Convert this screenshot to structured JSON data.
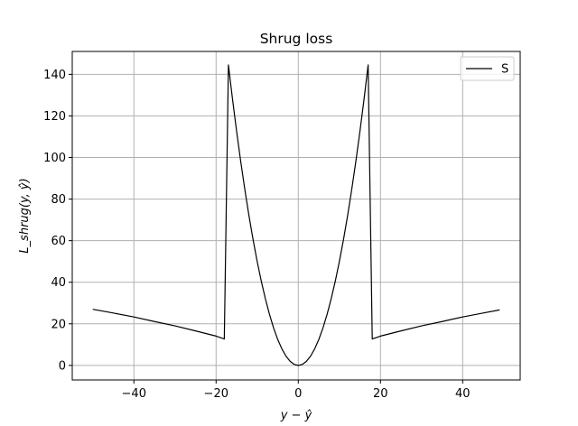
{
  "chart_data": {
    "type": "line",
    "title": "Shrug loss",
    "xlabel": "y − ŷ",
    "ylabel": "L_shrug(y, ŷ)",
    "xlim": [
      -55,
      54
    ],
    "ylim": [
      -7,
      151
    ],
    "xticks": [
      -40,
      -20,
      0,
      20,
      40
    ],
    "xtick_labels": [
      "−40",
      "−20",
      "0",
      "20",
      "40"
    ],
    "yticks": [
      0,
      20,
      40,
      60,
      80,
      100,
      120,
      140
    ],
    "ytick_labels": [
      "0",
      "20",
      "40",
      "60",
      "80",
      "100",
      "120",
      "140"
    ],
    "grid": true,
    "legend_position": "top-right",
    "series": [
      {
        "name": "S",
        "color": "#000000",
        "points": [
          [
            -50,
            27
          ],
          [
            -45,
            25.2
          ],
          [
            -40,
            23.3
          ],
          [
            -35,
            21.1
          ],
          [
            -30,
            19
          ],
          [
            -25,
            16.6
          ],
          [
            -20,
            14.1
          ],
          [
            -18,
            12.7
          ],
          [
            -17,
            144.5
          ],
          [
            -16,
            128
          ],
          [
            -15,
            112.5
          ],
          [
            -14,
            98
          ],
          [
            -13,
            84.5
          ],
          [
            -12,
            72
          ],
          [
            -11,
            60.5
          ],
          [
            -10,
            50
          ],
          [
            -9,
            40.5
          ],
          [
            -8,
            32
          ],
          [
            -7,
            24.5
          ],
          [
            -6,
            18
          ],
          [
            -5,
            12.5
          ],
          [
            -4,
            8
          ],
          [
            -3,
            4.5
          ],
          [
            -2,
            2
          ],
          [
            -1,
            0.5
          ],
          [
            0,
            0
          ],
          [
            1,
            0.5
          ],
          [
            2,
            2
          ],
          [
            3,
            4.5
          ],
          [
            4,
            8
          ],
          [
            5,
            12.5
          ],
          [
            6,
            18
          ],
          [
            7,
            24.5
          ],
          [
            8,
            32
          ],
          [
            9,
            40.5
          ],
          [
            10,
            50
          ],
          [
            11,
            60.5
          ],
          [
            12,
            72
          ],
          [
            13,
            84.5
          ],
          [
            14,
            98
          ],
          [
            15,
            112.5
          ],
          [
            16,
            128
          ],
          [
            17,
            144.5
          ],
          [
            18,
            12.7
          ],
          [
            20,
            14.1
          ],
          [
            25,
            16.6
          ],
          [
            30,
            19
          ],
          [
            35,
            21.1
          ],
          [
            40,
            23.3
          ],
          [
            45,
            25.2
          ],
          [
            49,
            26.7
          ]
        ]
      }
    ]
  }
}
